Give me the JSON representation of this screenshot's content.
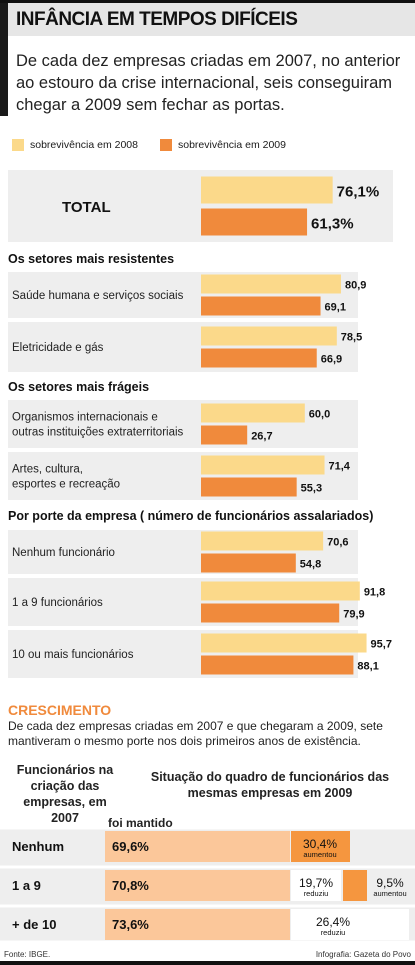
{
  "header": {
    "title": "INFÂNCIA EM TEMPOS DIFÍCEIS",
    "intro": "De cada dez empresas criadas em 2007, no anterior ao estouro da crise internacional, seis conseguiram chegar a 2009 sem fechar as portas."
  },
  "legend": {
    "s2008": "sobrevivência em 2008",
    "s2009": "sobrevivência em 2009"
  },
  "colors": {
    "s2008": "#fbd98a",
    "s2009": "#f08a3c",
    "band": "#eeeeee",
    "cell_light": "#fbc79a",
    "cell_orange": "#f5963f"
  },
  "chart_data": [
    {
      "type": "bar",
      "orientation": "horizontal",
      "series_names": [
        "sobrevivência em 2008",
        "sobrevivência em 2009"
      ],
      "xlim": [
        0,
        100
      ],
      "unit": "%",
      "groups": [
        {
          "heading": "",
          "rows": [
            {
              "label": "TOTAL",
              "v2008": 76.1,
              "v2009": 61.3,
              "d2008": "76,1%",
              "d2009": "61,3%"
            }
          ]
        },
        {
          "heading": "Os setores mais resistentes",
          "rows": [
            {
              "label": "Saúde humana e serviços sociais",
              "v2008": 80.9,
              "v2009": 69.1,
              "d2008": "80,9",
              "d2009": "69,1"
            },
            {
              "label": "Eletricidade e gás",
              "v2008": 78.5,
              "v2009": 66.9,
              "d2008": "78,5",
              "d2009": "66,9"
            }
          ]
        },
        {
          "heading": "Os setores mais frágeis",
          "rows": [
            {
              "label": "Organismos internacionais e outras instituições extraterritoriais",
              "v2008": 60.0,
              "v2009": 26.7,
              "d2008": "60,0",
              "d2009": "26,7"
            },
            {
              "label": "Artes, cultura, esportes e recreação",
              "v2008": 71.4,
              "v2009": 55.3,
              "d2008": "71,4",
              "d2009": "55,3"
            }
          ]
        },
        {
          "heading": "Por porte da empresa ( número de funcionários assalariados)",
          "rows": [
            {
              "label": "Nenhum funcionário",
              "v2008": 70.6,
              "v2009": 54.8,
              "d2008": "70,6",
              "d2009": "54,8"
            },
            {
              "label": "1 a 9 funcionários",
              "v2008": 91.8,
              "v2009": 79.9,
              "d2008": "91,8",
              "d2009": "79,9"
            },
            {
              "label": "10 ou mais funcionários",
              "v2008": 95.7,
              "v2009": 88.1,
              "d2008": "95,7",
              "d2009": "88,1"
            }
          ]
        }
      ]
    },
    {
      "type": "table",
      "title": "CRESCIMENTO",
      "rows": [
        {
          "label": "Nenhum",
          "mantido": "69,6%",
          "aumentou": "30,4%",
          "reduziu": ""
        },
        {
          "label": "1 a 9",
          "mantido": "70,8%",
          "aumentou": "9,5%",
          "reduziu": "19,7%"
        },
        {
          "label": "+ de 10",
          "mantido": "73,6%",
          "aumentou": "",
          "reduziu": "26,4%"
        }
      ],
      "aumentou_label": "aumentou",
      "reduziu_label": "reduziu"
    }
  ],
  "crescimento": {
    "title": "CRESCIMENTO",
    "text": "De cada dez empresas criadas em 2007 e que chegaram a 2009, sete mantiveram o mesmo porte nos dois primeiros anos de existência.",
    "col_left": "Funcionários na criação das empresas, em 2007",
    "col_right": "Situação do quadro de funcionários das mesmas empresas em 2009",
    "mantido_label": "foi mantido"
  },
  "footer": {
    "source": "Fonte: IBGE.",
    "credit": "Infografia: Gazeta do Povo"
  }
}
